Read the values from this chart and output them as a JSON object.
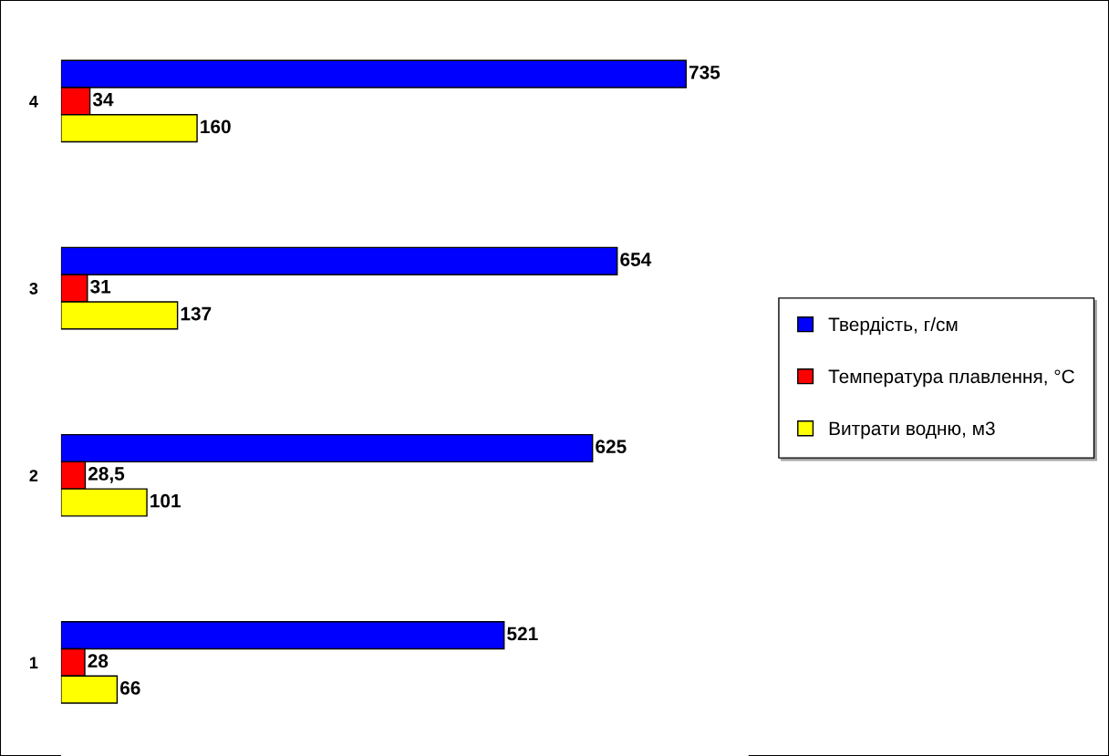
{
  "chart_data": {
    "type": "bar",
    "orientation": "horizontal",
    "categories": [
      "4",
      "3",
      "2",
      "1"
    ],
    "series": [
      {
        "name": "Твердість, г/см",
        "color": "#0000ff",
        "values": [
          735,
          654,
          625,
          521
        ],
        "value_labels": [
          "735",
          "654",
          "625",
          "521"
        ]
      },
      {
        "name": "Температура плавлення, °C",
        "color": "#ff0000",
        "values": [
          34,
          31,
          28.5,
          28
        ],
        "value_labels": [
          "34",
          "31",
          "28,5",
          "28"
        ]
      },
      {
        "name": "Витрати водню, м3",
        "color": "#ffff00",
        "values": [
          160,
          137,
          101,
          66
        ],
        "value_labels": [
          "160",
          "137",
          "101",
          "66"
        ]
      }
    ],
    "legend": "right",
    "grid": false
  }
}
